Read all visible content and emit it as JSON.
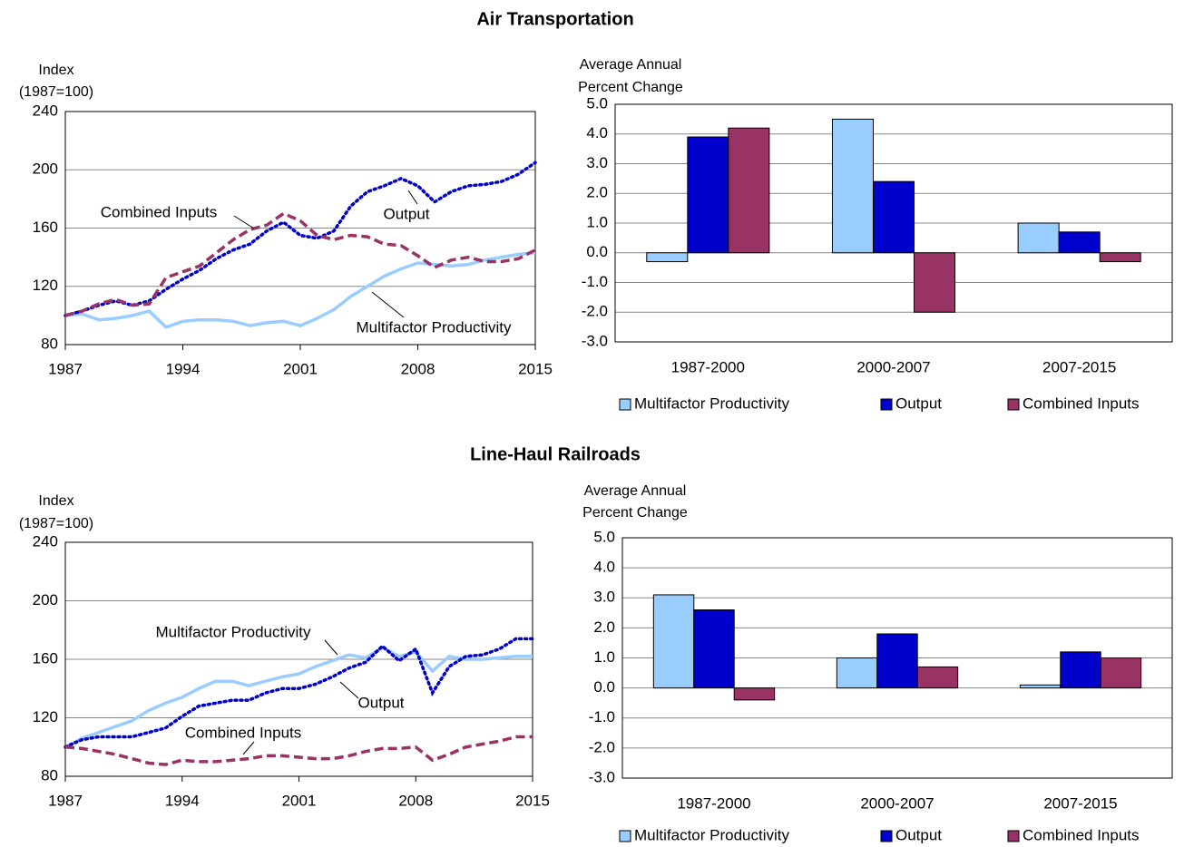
{
  "headings": [
    "Air Transportation",
    "Line-Haul Railroads"
  ],
  "chart_data": [
    {
      "type": "line",
      "ylabel": [
        "Index",
        "(1987=100)"
      ],
      "x": [
        1987,
        1988,
        1989,
        1990,
        1991,
        1992,
        1993,
        1994,
        1995,
        1996,
        1997,
        1998,
        1999,
        2000,
        2001,
        2002,
        2003,
        2004,
        2005,
        2006,
        2007,
        2008,
        2009,
        2010,
        2011,
        2012,
        2013,
        2014,
        2015
      ],
      "xlim": [
        1987,
        2015
      ],
      "xticks": [
        1987,
        1994,
        2001,
        2008,
        2015
      ],
      "ylim": [
        80,
        240
      ],
      "yticks": [
        80,
        120,
        160,
        200,
        240
      ],
      "grid": true,
      "series": [
        {
          "name": "Multifactor Productivity",
          "color": "#99ccff",
          "style": "solid",
          "values": [
            100,
            101,
            97,
            98,
            100,
            103,
            92,
            96,
            97,
            97,
            96,
            93,
            95,
            96,
            93,
            98,
            104,
            113,
            120,
            127,
            132,
            136,
            135,
            134,
            135,
            138,
            140,
            142,
            143
          ]
        },
        {
          "name": "Output",
          "color": "#0000cc",
          "style": "dotted",
          "values": [
            100,
            103,
            107,
            110,
            107,
            110,
            118,
            125,
            131,
            139,
            145,
            149,
            158,
            164,
            155,
            153,
            158,
            175,
            185,
            189,
            194,
            189,
            178,
            185,
            189,
            190,
            192,
            197,
            205
          ]
        },
        {
          "name": "Combined Inputs",
          "color": "#993366",
          "style": "dashed",
          "values": [
            100,
            103,
            108,
            111,
            107,
            108,
            126,
            130,
            134,
            143,
            152,
            159,
            162,
            170,
            165,
            155,
            152,
            155,
            154,
            149,
            148,
            141,
            133,
            138,
            140,
            137,
            137,
            139,
            145
          ]
        }
      ]
    },
    {
      "type": "bar",
      "ylabel": [
        "Average Annual",
        "Percent Change"
      ],
      "categories": [
        "1987-2000",
        "2000-2007",
        "2007-2015"
      ],
      "ylim": [
        -3,
        5
      ],
      "yticks": [
        {
          "value": -3,
          "label": "-3.0"
        },
        {
          "value": -2,
          "label": "-2.0"
        },
        {
          "value": -1,
          "label": "-1.0"
        },
        {
          "value": 0,
          "label": "0.0"
        },
        {
          "value": 1,
          "label": "1.0"
        },
        {
          "value": 2,
          "label": "2.0"
        },
        {
          "value": 3,
          "label": "3.0"
        },
        {
          "value": 4,
          "label": "4.0"
        },
        {
          "value": 5,
          "label": "5.0"
        }
      ],
      "grid": true,
      "legend": "bottom",
      "series": [
        {
          "name": "Multifactor Productivity",
          "color": "#99ccff",
          "values": [
            -0.3,
            4.5,
            1.0
          ]
        },
        {
          "name": "Output",
          "color": "#0000cc",
          "values": [
            3.9,
            2.4,
            0.7
          ]
        },
        {
          "name": "Combined Inputs",
          "color": "#993366",
          "values": [
            4.2,
            -2.0,
            -0.3
          ]
        }
      ]
    },
    {
      "type": "line",
      "ylabel": [
        "Index",
        "(1987=100)"
      ],
      "x": [
        1987,
        1988,
        1989,
        1990,
        1991,
        1992,
        1993,
        1994,
        1995,
        1996,
        1997,
        1998,
        1999,
        2000,
        2001,
        2002,
        2003,
        2004,
        2005,
        2006,
        2007,
        2008,
        2009,
        2010,
        2011,
        2012,
        2013,
        2014,
        2015
      ],
      "xlim": [
        1987,
        2015
      ],
      "xticks": [
        1987,
        1994,
        2001,
        2008,
        2015
      ],
      "ylim": [
        80,
        240
      ],
      "yticks": [
        80,
        120,
        160,
        200,
        240
      ],
      "grid": true,
      "series": [
        {
          "name": "Multifactor Productivity",
          "color": "#99ccff",
          "style": "solid",
          "values": [
            100,
            106,
            110,
            114,
            118,
            125,
            130,
            134,
            140,
            145,
            145,
            142,
            145,
            148,
            150,
            155,
            159,
            163,
            161,
            168,
            162,
            165,
            152,
            162,
            160,
            160,
            161,
            162,
            162
          ]
        },
        {
          "name": "Output",
          "color": "#0000cc",
          "style": "dotted",
          "values": [
            100,
            105,
            107,
            107,
            107,
            110,
            113,
            121,
            128,
            130,
            132,
            132,
            137,
            140,
            140,
            143,
            148,
            154,
            158,
            169,
            159,
            167,
            137,
            155,
            162,
            163,
            167,
            174,
            174
          ]
        },
        {
          "name": "Combined Inputs",
          "color": "#993366",
          "style": "dashed",
          "values": [
            100,
            99,
            97,
            95,
            92,
            89,
            88,
            91,
            90,
            90,
            91,
            92,
            94,
            94,
            93,
            92,
            92,
            94,
            97,
            99,
            99,
            100,
            91,
            95,
            100,
            102,
            104,
            107,
            107
          ]
        }
      ]
    },
    {
      "type": "bar",
      "ylabel": [
        "Average Annual",
        "Percent Change"
      ],
      "categories": [
        "1987-2000",
        "2000-2007",
        "2007-2015"
      ],
      "ylim": [
        -3,
        5
      ],
      "yticks": [
        {
          "value": -3,
          "label": "-3.0"
        },
        {
          "value": -2,
          "label": "-2.0"
        },
        {
          "value": -1,
          "label": "-1.0"
        },
        {
          "value": 0,
          "label": "0.0"
        },
        {
          "value": 1,
          "label": "1.0"
        },
        {
          "value": 2,
          "label": "2.0"
        },
        {
          "value": 3,
          "label": "3.0"
        },
        {
          "value": 4,
          "label": "4.0"
        },
        {
          "value": 5,
          "label": "5.0"
        }
      ],
      "grid": true,
      "legend": "bottom",
      "series": [
        {
          "name": "Multifactor Productivity",
          "color": "#99ccff",
          "values": [
            3.1,
            1.0,
            0.1
          ]
        },
        {
          "name": "Output",
          "color": "#0000cc",
          "values": [
            2.6,
            1.8,
            1.2
          ]
        },
        {
          "name": "Combined Inputs",
          "color": "#993366",
          "values": [
            -0.4,
            0.7,
            1.0
          ]
        }
      ]
    }
  ]
}
